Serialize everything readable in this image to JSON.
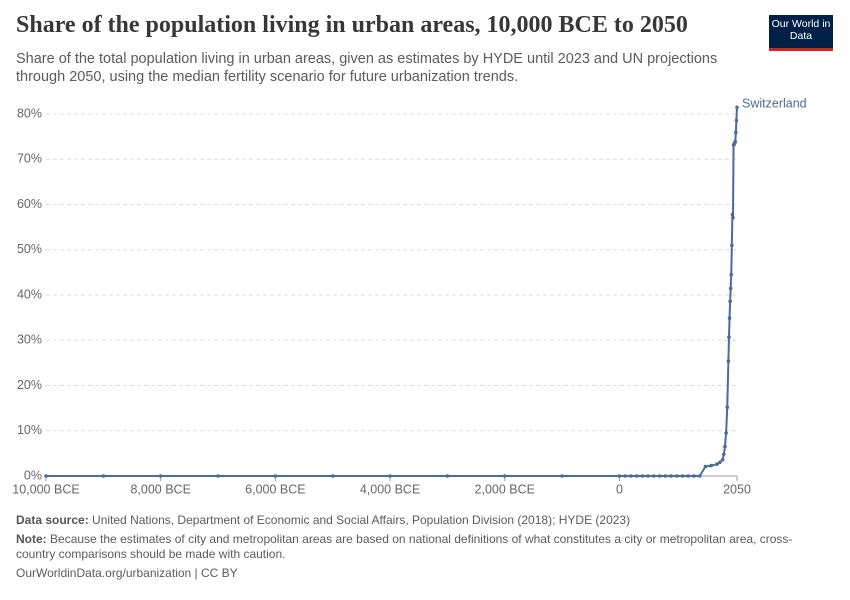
{
  "chart_data": {
    "type": "line",
    "title": "Share of the population living in urban areas, 10,000 BCE to 2050",
    "subtitle": "Share of the total population living in urban areas, given as estimates by HYDE until 2023 and UN projections through 2050, using the median fertility scenario for future urbanization trends.",
    "logo": "Our World in Data",
    "x": [
      -10000,
      -9000,
      -8000,
      -7000,
      -6000,
      -5000,
      -4000,
      -3000,
      -2000,
      -1000,
      0,
      100,
      200,
      300,
      400,
      500,
      600,
      700,
      800,
      900,
      1000,
      1100,
      1200,
      1300,
      1400,
      1500,
      1600,
      1700,
      1750,
      1800,
      1820,
      1840,
      1860,
      1880,
      1900,
      1910,
      1920,
      1930,
      1940,
      1950,
      1960,
      1970,
      1980,
      1990,
      2000,
      2010,
      2020,
      2030,
      2040,
      2050
    ],
    "series": [
      {
        "name": "Switzerland",
        "color": "#4c6a9c",
        "values": [
          0,
          0,
          0,
          0,
          0,
          0,
          0,
          0,
          0,
          0,
          0,
          0,
          0,
          0,
          0,
          0,
          0,
          0,
          0,
          0,
          0,
          0,
          0,
          0,
          0,
          2.1,
          2.3,
          2.6,
          3.0,
          3.6,
          4.8,
          6.5,
          9.5,
          15.2,
          25.4,
          30.7,
          34.9,
          38.6,
          41.5,
          44.5,
          51.0,
          57.8,
          57.1,
          73.2,
          73.3,
          73.6,
          73.9,
          75.9,
          78.6,
          81.5
        ]
      }
    ],
    "xlim": [
      -10000,
      2050
    ],
    "xticks": [
      {
        "value": -10000,
        "label": "10,000 BCE"
      },
      {
        "value": -8000,
        "label": "8,000 BCE"
      },
      {
        "value": -6000,
        "label": "6,000 BCE"
      },
      {
        "value": -4000,
        "label": "4,000 BCE"
      },
      {
        "value": -2000,
        "label": "2,000 BCE"
      },
      0,
      2050
    ],
    "ylim": [
      0,
      82
    ],
    "yticks": [
      {
        "value": 0,
        "label": "0%"
      },
      {
        "value": 10,
        "label": "10%"
      },
      {
        "value": 20,
        "label": "20%"
      },
      {
        "value": 30,
        "label": "30%"
      },
      {
        "value": 40,
        "label": "40%"
      },
      {
        "value": 50,
        "label": "50%"
      },
      {
        "value": 60,
        "label": "60%"
      },
      {
        "value": 70,
        "label": "70%"
      },
      {
        "value": 80,
        "label": "80%"
      }
    ],
    "grid": true,
    "source_label": "Data source:",
    "source_text": "United Nations, Department of Economic and Social Affairs, Population Division (2018); HYDE (2023)",
    "note_label": "Note:",
    "note_text": "Because the estimates of city and metropolitan areas are based on national definitions of what constitutes a city or metropolitan area, cross-country comparisons should be made with caution.",
    "url": "OurWorldinData.org/urbanization | CC BY"
  }
}
